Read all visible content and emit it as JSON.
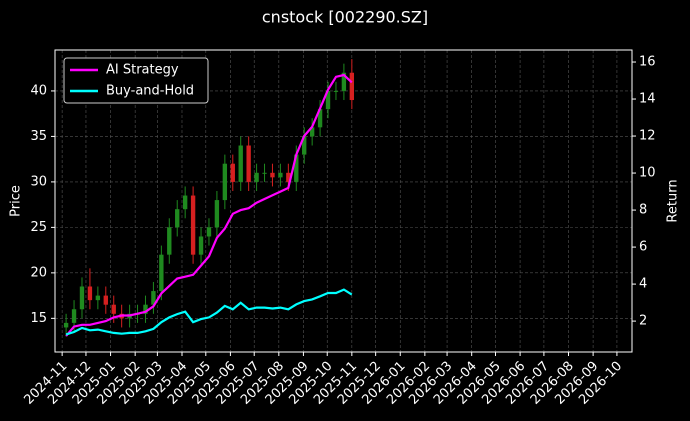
{
  "chart_data": {
    "type": "candlestick",
    "title": "cnstock [002290.SZ]",
    "y_label": "Price",
    "y2_label": "Return",
    "x": [
      5,
      15,
      25,
      35,
      45,
      55,
      65,
      75,
      85,
      95,
      105,
      115,
      125,
      135,
      145,
      155,
      165,
      175,
      185,
      195,
      205,
      215,
      225,
      235,
      245,
      255,
      265,
      275,
      285,
      295,
      305,
      315,
      325,
      335,
      345,
      355,
      365
    ],
    "open": [
      14,
      14.5,
      16,
      18.5,
      17,
      17.5,
      16.5,
      15.5,
      15,
      15.5,
      15.5,
      16.5,
      18,
      22,
      25,
      27,
      28.5,
      22,
      24,
      25,
      28,
      32,
      30,
      34,
      30,
      31,
      31,
      30.5,
      31,
      30,
      33,
      35,
      36,
      38,
      40,
      40,
      42
    ],
    "high": [
      15.5,
      17,
      19.5,
      20.5,
      18.5,
      18.5,
      17.5,
      16.5,
      16.5,
      16.5,
      17.5,
      19,
      23,
      26,
      28,
      29.5,
      29.5,
      25,
      26,
      29,
      33,
      33,
      35,
      35,
      32,
      32,
      32,
      32,
      32,
      34,
      36,
      37,
      39,
      41,
      41,
      43,
      43.5
    ],
    "low": [
      13,
      13.5,
      15,
      16,
      16,
      15.5,
      14.5,
      14,
      14,
      14.5,
      14.5,
      15.5,
      17,
      21,
      24,
      26,
      21,
      21,
      23,
      24,
      27,
      29,
      29,
      29,
      29,
      30,
      29.5,
      29.5,
      29,
      29,
      32,
      34,
      35,
      37,
      39,
      39,
      38
    ],
    "close": [
      14.5,
      16,
      18.5,
      17,
      17.5,
      16.5,
      15.5,
      15,
      15.5,
      15.5,
      16.5,
      18,
      22,
      25,
      27,
      28.5,
      22,
      24,
      25,
      28,
      32,
      30,
      34,
      30,
      31,
      31,
      30.5,
      31,
      30,
      33,
      35,
      36,
      38,
      40,
      40,
      42,
      39
    ],
    "up_color": "#1f8a1f",
    "down_color": "#d62020",
    "series": [
      {
        "name": "AI Strategy",
        "color": "#ff00ff",
        "axis": "y2",
        "values": [
          1.2,
          1.7,
          1.8,
          1.8,
          1.9,
          2.0,
          2.2,
          2.3,
          2.3,
          2.4,
          2.5,
          2.8,
          3.5,
          3.9,
          4.3,
          4.4,
          4.5,
          5.0,
          5.5,
          6.5,
          7.0,
          7.8,
          8.0,
          8.1,
          8.4,
          8.6,
          8.8,
          9.0,
          9.2,
          11.0,
          12.0,
          12.5,
          13.5,
          14.5,
          15.2,
          15.3,
          14.9
        ]
      },
      {
        "name": "Buy-and-Hold",
        "color": "#00ffff",
        "axis": "y2",
        "values": [
          1.28,
          1.41,
          1.63,
          1.5,
          1.54,
          1.45,
          1.36,
          1.32,
          1.36,
          1.36,
          1.45,
          1.58,
          1.94,
          2.2,
          2.38,
          2.51,
          1.94,
          2.11,
          2.2,
          2.46,
          2.82,
          2.64,
          2.99,
          2.64,
          2.73,
          2.73,
          2.68,
          2.73,
          2.64,
          2.9,
          3.08,
          3.17,
          3.34,
          3.52,
          3.52,
          3.7,
          3.43
        ]
      }
    ],
    "xlim": [
      -9,
      718
    ],
    "xticks": [
      {
        "value": 0,
        "label": "2024-11"
      },
      {
        "value": 30,
        "label": "2024-12"
      },
      {
        "value": 61,
        "label": "2025-01"
      },
      {
        "value": 92,
        "label": "2025-02"
      },
      {
        "value": 120,
        "label": "2025-03"
      },
      {
        "value": 151,
        "label": "2025-04"
      },
      {
        "value": 181,
        "label": "2025-05"
      },
      {
        "value": 212,
        "label": "2025-06"
      },
      {
        "value": 242,
        "label": "2025-07"
      },
      {
        "value": 273,
        "label": "2025-08"
      },
      {
        "value": 304,
        "label": "2025-09"
      },
      {
        "value": 334,
        "label": "2025-10"
      },
      {
        "value": 365,
        "label": "2025-11"
      },
      {
        "value": 395,
        "label": "2025-12"
      },
      {
        "value": 426,
        "label": "2026-01"
      },
      {
        "value": 457,
        "label": "2026-02"
      },
      {
        "value": 485,
        "label": "2026-03"
      },
      {
        "value": 516,
        "label": "2026-04"
      },
      {
        "value": 546,
        "label": "2026-05"
      },
      {
        "value": 577,
        "label": "2026-06"
      },
      {
        "value": 607,
        "label": "2026-07"
      },
      {
        "value": 638,
        "label": "2026-08"
      },
      {
        "value": 669,
        "label": "2026-09"
      },
      {
        "value": 699,
        "label": "2026-10"
      }
    ],
    "ylim": [
      11.3,
      44.5
    ],
    "yticks": [
      15,
      20,
      25,
      30,
      35,
      40
    ],
    "y2lim": [
      0.33,
      16.65
    ],
    "y2ticks": [
      2,
      4,
      6,
      8,
      10,
      12,
      14,
      16
    ],
    "grid": true,
    "legend": "upper left"
  }
}
